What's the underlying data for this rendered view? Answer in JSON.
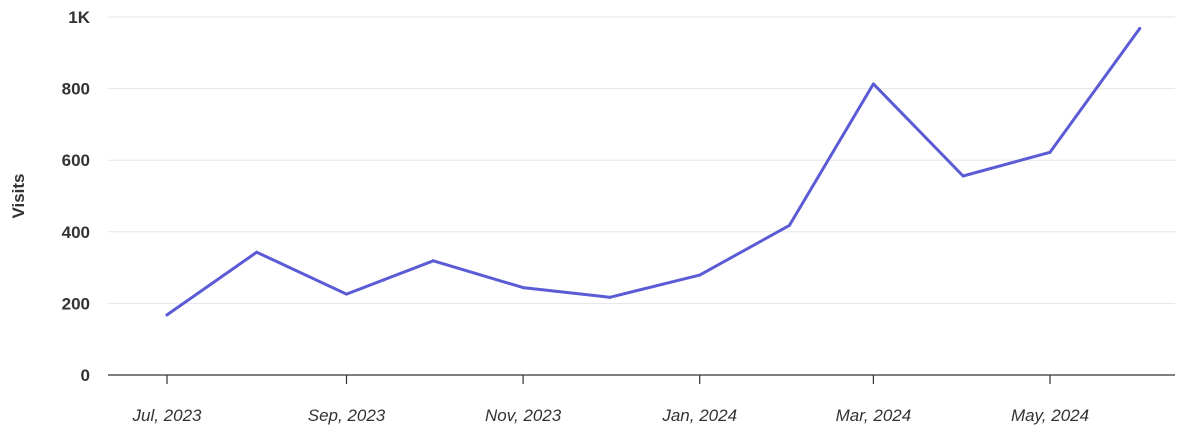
{
  "chart_data": {
    "type": "line",
    "title": "",
    "xlabel": "",
    "ylabel": "Visits",
    "ylim": [
      0,
      1000
    ],
    "y_ticks": [
      {
        "value": 0,
        "label": "0"
      },
      {
        "value": 200,
        "label": "200"
      },
      {
        "value": 400,
        "label": "400"
      },
      {
        "value": 600,
        "label": "600"
      },
      {
        "value": 800,
        "label": "800"
      },
      {
        "value": 1000,
        "label": "1K"
      }
    ],
    "x_tick_labels": [
      "Jul, 2023",
      "Sep, 2023",
      "Nov, 2023",
      "Jan, 2024",
      "Mar, 2024",
      "May, 2024"
    ],
    "x_tick_dates": [
      "2023-07-01",
      "2023-09-01",
      "2023-11-01",
      "2024-01-01",
      "2024-03-01",
      "2024-05-01"
    ],
    "x": [
      "2023-07-01",
      "2023-08-01",
      "2023-09-01",
      "2023-10-01",
      "2023-11-01",
      "2023-12-01",
      "2024-01-01",
      "2024-02-01",
      "2024-03-01",
      "2024-04-01",
      "2024-05-01",
      "2024-06-01"
    ],
    "series": [
      {
        "name": "",
        "color": "#5b5bd6",
        "values": [
          168,
          343,
          226,
          319,
          244,
          217,
          279,
          418,
          813,
          556,
          622,
          968
        ]
      }
    ],
    "grid": true,
    "legend": "none"
  }
}
